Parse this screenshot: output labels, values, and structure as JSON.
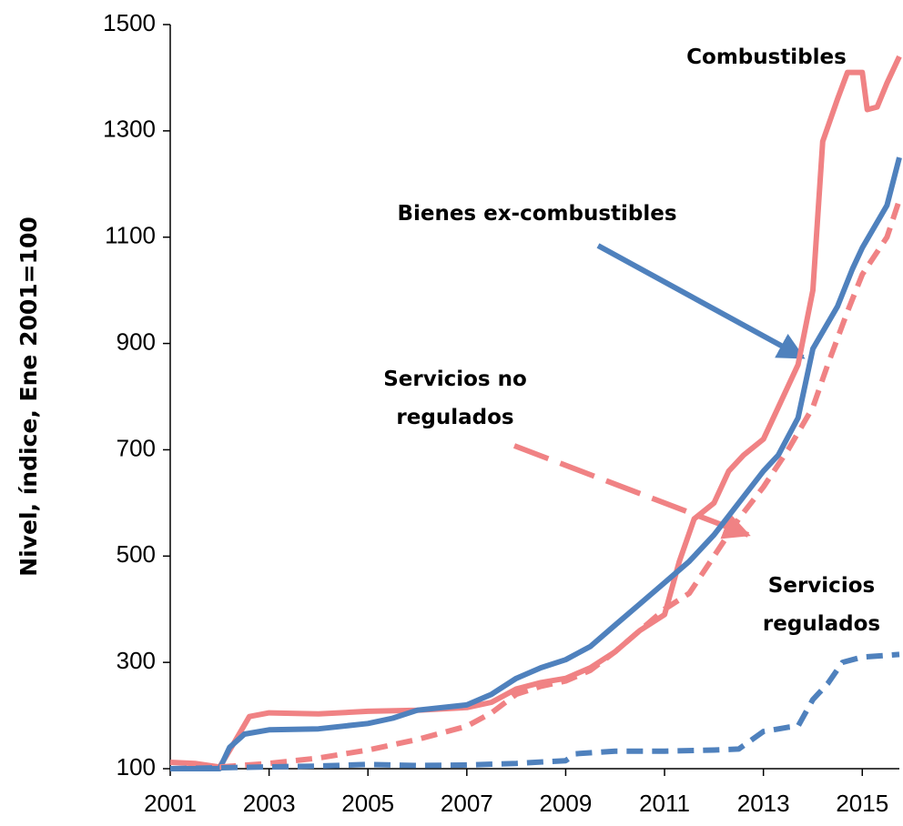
{
  "chart_data": {
    "type": "line",
    "y_label": "Nivel, índice, Ene 2001=100",
    "xlim": [
      2001,
      2015.75
    ],
    "xticks": [
      2001,
      2003,
      2005,
      2007,
      2009,
      2011,
      2013,
      2015
    ],
    "ylim": [
      100,
      1500
    ],
    "yticks": [
      100,
      300,
      500,
      700,
      900,
      1100,
      1300,
      1500
    ],
    "series": [
      {
        "name": "Combustibles",
        "color": "#f08284",
        "style": "solid",
        "x": [
          2001,
          2001.5,
          2002,
          2002.3,
          2002.6,
          2003,
          2004,
          2005,
          2006,
          2007,
          2007.5,
          2008,
          2008.5,
          2009,
          2009.5,
          2010,
          2010.5,
          2011,
          2011.3,
          2011.6,
          2012,
          2012.3,
          2012.6,
          2013,
          2013.3,
          2013.7,
          2014,
          2014.2,
          2014.5,
          2014.7,
          2015,
          2015.1,
          2015.3,
          2015.5,
          2015.75
        ],
        "values": [
          112,
          110,
          103,
          150,
          198,
          205,
          203,
          208,
          210,
          215,
          225,
          250,
          262,
          270,
          290,
          320,
          360,
          390,
          490,
          570,
          600,
          660,
          690,
          720,
          780,
          860,
          1000,
          1280,
          1360,
          1410,
          1410,
          1340,
          1345,
          1390,
          1440
        ]
      },
      {
        "name": "Bienes ex-combustibles",
        "color": "#4f81bd",
        "style": "solid",
        "x": [
          2001,
          2002,
          2002.2,
          2002.5,
          2003,
          2004,
          2005,
          2005.5,
          2006,
          2007,
          2007.5,
          2008,
          2008.5,
          2009,
          2009.5,
          2010,
          2010.5,
          2011,
          2011.5,
          2012,
          2012.5,
          2013,
          2013.3,
          2013.7,
          2014,
          2014.5,
          2014.8,
          2015,
          2015.5,
          2015.75
        ],
        "values": [
          100,
          100,
          140,
          165,
          173,
          175,
          185,
          195,
          210,
          220,
          240,
          270,
          290,
          305,
          330,
          370,
          410,
          450,
          490,
          540,
          600,
          660,
          690,
          760,
          890,
          970,
          1040,
          1080,
          1160,
          1250
        ]
      },
      {
        "name": "Servicios no regulados",
        "color": "#f08284",
        "style": "dashed",
        "x": [
          2002,
          2003,
          2004,
          2005,
          2006,
          2007,
          2007.5,
          2008,
          2008.5,
          2009,
          2009.5,
          2010,
          2010.5,
          2011,
          2011.5,
          2012,
          2012.5,
          2013,
          2013.5,
          2014,
          2014.3,
          2014.7,
          2015,
          2015.5,
          2015.75
        ],
        "values": [
          103,
          110,
          120,
          135,
          155,
          180,
          205,
          240,
          255,
          265,
          285,
          320,
          360,
          400,
          430,
          500,
          570,
          630,
          700,
          780,
          860,
          960,
          1030,
          1100,
          1170
        ]
      },
      {
        "name": "Servicios regulados",
        "color": "#4f81bd",
        "style": "dashed",
        "x": [
          2001,
          2004,
          2005,
          2006,
          2007,
          2008,
          2009,
          2009.2,
          2010,
          2011,
          2012,
          2012.5,
          2013,
          2013.5,
          2013.7,
          2014,
          2014.3,
          2014.6,
          2015,
          2015.75
        ],
        "values": [
          100,
          105,
          108,
          106,
          107,
          110,
          115,
          128,
          133,
          133,
          135,
          137,
          170,
          178,
          180,
          230,
          260,
          300,
          310,
          315
        ]
      }
    ]
  }
}
